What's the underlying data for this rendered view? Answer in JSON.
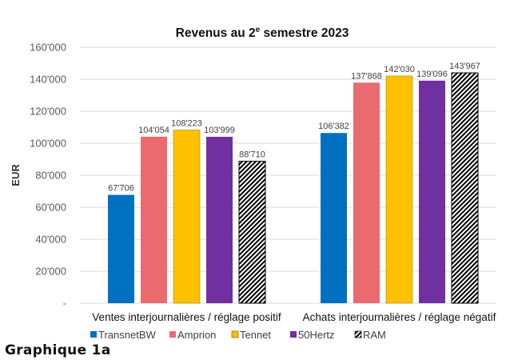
{
  "chart_data": {
    "type": "bar",
    "title": "Revenus au 2",
    "title_superscript": "e",
    "title_suffix": " semestre 2023",
    "xlabel": "",
    "ylabel": "EUR",
    "ylim": [
      0,
      160000
    ],
    "yticks": [
      0,
      20000,
      40000,
      60000,
      80000,
      100000,
      120000,
      140000,
      160000
    ],
    "ytick_labels": [
      "-",
      "20'000",
      "40'000",
      "60'000",
      "80'000",
      "100'000",
      "120'000",
      "140'000",
      "160'000"
    ],
    "grid": true,
    "legend_position": "bottom",
    "categories": [
      "Ventes interjournalières / réglage positif",
      "Achats interjournalières / réglage négatif"
    ],
    "series": [
      {
        "name": "TransnetBW",
        "color": "#0070C0",
        "pattern": false,
        "values": [
          67706,
          106382
        ],
        "labels": [
          "67'706",
          "106'382"
        ]
      },
      {
        "name": "Amprion",
        "color": "#E96B6F",
        "pattern": false,
        "values": [
          104054,
          137868
        ],
        "labels": [
          "104'054",
          "137'868"
        ]
      },
      {
        "name": "Tennet",
        "color": "#FFC000",
        "pattern": false,
        "values": [
          108223,
          142030
        ],
        "labels": [
          "108'223",
          "142'030"
        ]
      },
      {
        "name": "50Hertz",
        "color": "#7030A0",
        "pattern": false,
        "values": [
          103999,
          139096
        ],
        "labels": [
          "103'999",
          "139'096"
        ]
      },
      {
        "name": "RAM",
        "color": "#000000",
        "pattern": true,
        "values": [
          88710,
          143967
        ],
        "labels": [
          "88'710",
          "143'967"
        ]
      }
    ]
  },
  "caption": "Graphique 1a"
}
